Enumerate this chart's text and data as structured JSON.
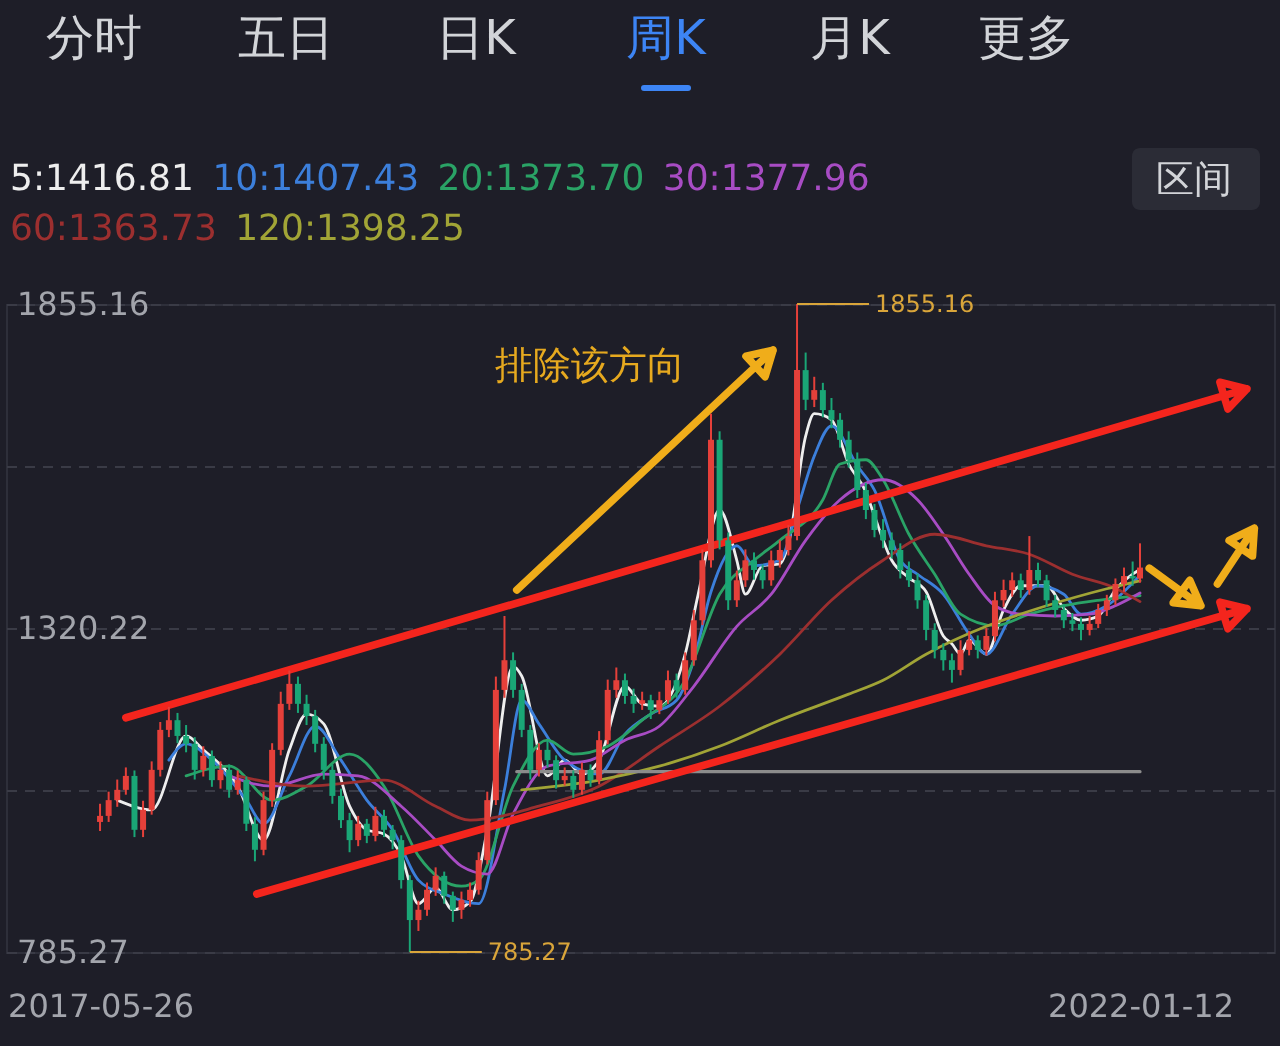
{
  "chart_data": {
    "type": "candlestick",
    "x": [
      "2017-05-26",
      "2017-06-09",
      "2017-06-23",
      "2017-07-07",
      "2017-07-21",
      "2017-08-04",
      "2017-08-18",
      "2017-09-01",
      "2017-09-15",
      "2017-09-29",
      "2017-10-13",
      "2017-10-27",
      "2017-11-10",
      "2017-11-24",
      "2017-12-08",
      "2017-12-22",
      "2018-01-05",
      "2018-01-19",
      "2018-02-02",
      "2018-02-16",
      "2018-03-02",
      "2018-03-16",
      "2018-03-30",
      "2018-04-13",
      "2018-04-27",
      "2018-05-11",
      "2018-05-25",
      "2018-06-08",
      "2018-06-22",
      "2018-07-06",
      "2018-07-20",
      "2018-08-03",
      "2018-08-17",
      "2018-08-31",
      "2018-09-14",
      "2018-09-28",
      "2018-10-12",
      "2018-10-26",
      "2018-11-09",
      "2018-11-23",
      "2018-12-07",
      "2018-12-21",
      "2019-01-04",
      "2019-01-18",
      "2019-02-01",
      "2019-02-15",
      "2019-03-01",
      "2019-03-15",
      "2019-03-29",
      "2019-04-12",
      "2019-04-26",
      "2019-05-10",
      "2019-05-24",
      "2019-06-07",
      "2019-06-21",
      "2019-07-05",
      "2019-07-19",
      "2019-08-02",
      "2019-08-16",
      "2019-08-30",
      "2019-09-13",
      "2019-09-27",
      "2019-10-11",
      "2019-10-25",
      "2019-11-08",
      "2019-11-22",
      "2019-12-06",
      "2019-12-20",
      "2020-01-03",
      "2020-01-17",
      "2020-01-31",
      "2020-02-14",
      "2020-02-28",
      "2020-03-13",
      "2020-03-27",
      "2020-04-10",
      "2020-04-24",
      "2020-05-08",
      "2020-05-22",
      "2020-06-05",
      "2020-06-19",
      "2020-07-03",
      "2020-07-17",
      "2020-07-31",
      "2020-08-14",
      "2020-08-28",
      "2020-09-11",
      "2020-09-25",
      "2020-10-09",
      "2020-10-23",
      "2020-11-06",
      "2020-11-20",
      "2020-12-04",
      "2020-12-18",
      "2021-01-01",
      "2021-01-15",
      "2021-01-29",
      "2021-02-12",
      "2021-02-26",
      "2021-03-12",
      "2021-03-26",
      "2021-04-09",
      "2021-04-23",
      "2021-05-07",
      "2021-05-21",
      "2021-06-04",
      "2021-06-18",
      "2021-07-02",
      "2021-07-16",
      "2021-07-30",
      "2021-08-13",
      "2021-08-27",
      "2021-09-10",
      "2021-09-24",
      "2021-10-08",
      "2021-10-22",
      "2021-11-05",
      "2021-11-19",
      "2021-12-03",
      "2021-12-17",
      "2021-12-31",
      "2022-01-12"
    ],
    "ohlc": [
      [
        1000,
        1030,
        985,
        1010
      ],
      [
        1010,
        1050,
        1000,
        1036
      ],
      [
        1036,
        1070,
        1025,
        1053
      ],
      [
        1053,
        1090,
        1045,
        1076
      ],
      [
        1076,
        1085,
        975,
        987
      ],
      [
        987,
        1035,
        975,
        1020
      ],
      [
        1020,
        1100,
        1012,
        1086
      ],
      [
        1086,
        1165,
        1075,
        1152
      ],
      [
        1152,
        1190,
        1140,
        1168
      ],
      [
        1168,
        1180,
        1130,
        1142
      ],
      [
        1142,
        1160,
        1115,
        1129
      ],
      [
        1129,
        1140,
        1070,
        1086
      ],
      [
        1086,
        1125,
        1075,
        1109
      ],
      [
        1109,
        1118,
        1058,
        1069
      ],
      [
        1069,
        1100,
        1055,
        1086
      ],
      [
        1086,
        1095,
        1040,
        1053
      ],
      [
        1053,
        1085,
        1045,
        1069
      ],
      [
        1069,
        1075,
        985,
        997
      ],
      [
        997,
        1008,
        935,
        954
      ],
      [
        954,
        1050,
        945,
        1036
      ],
      [
        1036,
        1130,
        1025,
        1119
      ],
      [
        1119,
        1215,
        1110,
        1195
      ],
      [
        1195,
        1250,
        1185,
        1228
      ],
      [
        1228,
        1240,
        1180,
        1195
      ],
      [
        1195,
        1210,
        1160,
        1175
      ],
      [
        1175,
        1185,
        1115,
        1129
      ],
      [
        1129,
        1140,
        1070,
        1086
      ],
      [
        1086,
        1095,
        1030,
        1043
      ],
      [
        1043,
        1055,
        990,
        1003
      ],
      [
        1003,
        1015,
        950,
        970
      ],
      [
        970,
        1010,
        960,
        997
      ],
      [
        997,
        1005,
        965,
        977
      ],
      [
        977,
        1025,
        968,
        1010
      ],
      [
        1010,
        1020,
        975,
        987
      ],
      [
        987,
        995,
        955,
        970
      ],
      [
        970,
        978,
        890,
        904
      ],
      [
        904,
        912,
        785.27,
        838
      ],
      [
        838,
        870,
        820,
        855
      ],
      [
        855,
        900,
        845,
        888
      ],
      [
        888,
        925,
        878,
        911
      ],
      [
        911,
        918,
        865,
        878
      ],
      [
        878,
        885,
        835,
        855
      ],
      [
        855,
        885,
        840,
        871
      ],
      [
        871,
        900,
        860,
        888
      ],
      [
        888,
        950,
        880,
        937
      ],
      [
        937,
        1050,
        930,
        1036
      ],
      [
        1036,
        1240,
        1028,
        1218
      ],
      [
        1218,
        1340,
        1205,
        1267
      ],
      [
        1267,
        1280,
        1205,
        1218
      ],
      [
        1218,
        1228,
        1140,
        1152
      ],
      [
        1152,
        1160,
        1070,
        1086
      ],
      [
        1086,
        1130,
        1075,
        1119
      ],
      [
        1119,
        1135,
        1090,
        1102
      ],
      [
        1102,
        1110,
        1055,
        1069
      ],
      [
        1069,
        1090,
        1060,
        1076
      ],
      [
        1076,
        1085,
        1040,
        1053
      ],
      [
        1053,
        1098,
        1045,
        1086
      ],
      [
        1086,
        1095,
        1058,
        1069
      ],
      [
        1069,
        1150,
        1062,
        1135
      ],
      [
        1135,
        1235,
        1128,
        1218
      ],
      [
        1218,
        1255,
        1205,
        1234
      ],
      [
        1234,
        1245,
        1195,
        1208
      ],
      [
        1208,
        1220,
        1180,
        1195
      ],
      [
        1195,
        1215,
        1185,
        1201
      ],
      [
        1201,
        1210,
        1170,
        1185
      ],
      [
        1185,
        1215,
        1178,
        1201
      ],
      [
        1201,
        1250,
        1195,
        1234
      ],
      [
        1234,
        1245,
        1205,
        1218
      ],
      [
        1218,
        1280,
        1210,
        1267
      ],
      [
        1267,
        1350,
        1258,
        1333
      ],
      [
        1333,
        1450,
        1325,
        1432
      ],
      [
        1432,
        1674,
        1420,
        1631
      ],
      [
        1631,
        1645,
        1450,
        1465
      ],
      [
        1465,
        1478,
        1350,
        1366
      ],
      [
        1366,
        1415,
        1355,
        1399
      ],
      [
        1399,
        1450,
        1388,
        1432
      ],
      [
        1432,
        1445,
        1400,
        1416
      ],
      [
        1416,
        1425,
        1385,
        1399
      ],
      [
        1399,
        1448,
        1390,
        1432
      ],
      [
        1432,
        1465,
        1420,
        1449
      ],
      [
        1449,
        1490,
        1440,
        1472
      ],
      [
        1472,
        1855.16,
        1465,
        1746
      ],
      [
        1746,
        1775,
        1680,
        1697
      ],
      [
        1697,
        1735,
        1685,
        1713
      ],
      [
        1713,
        1725,
        1668,
        1680
      ],
      [
        1680,
        1700,
        1650,
        1664
      ],
      [
        1664,
        1675,
        1618,
        1631
      ],
      [
        1631,
        1645,
        1585,
        1598
      ],
      [
        1598,
        1610,
        1535,
        1548
      ],
      [
        1548,
        1560,
        1500,
        1515
      ],
      [
        1515,
        1525,
        1470,
        1482
      ],
      [
        1482,
        1500,
        1452,
        1465
      ],
      [
        1465,
        1478,
        1435,
        1449
      ],
      [
        1449,
        1460,
        1402,
        1416
      ],
      [
        1416,
        1430,
        1388,
        1399
      ],
      [
        1399,
        1410,
        1352,
        1366
      ],
      [
        1366,
        1375,
        1300,
        1317
      ],
      [
        1317,
        1328,
        1270,
        1284
      ],
      [
        1284,
        1295,
        1250,
        1267
      ],
      [
        1267,
        1278,
        1230,
        1251
      ],
      [
        1251,
        1300,
        1242,
        1284
      ],
      [
        1284,
        1315,
        1275,
        1300
      ],
      [
        1300,
        1308,
        1270,
        1284
      ],
      [
        1284,
        1320,
        1275,
        1307
      ],
      [
        1307,
        1380,
        1298,
        1366
      ],
      [
        1366,
        1400,
        1355,
        1383
      ],
      [
        1383,
        1412,
        1372,
        1399
      ],
      [
        1399,
        1410,
        1370,
        1383
      ],
      [
        1383,
        1472,
        1375,
        1416
      ],
      [
        1416,
        1428,
        1388,
        1399
      ],
      [
        1399,
        1408,
        1355,
        1366
      ],
      [
        1366,
        1375,
        1338,
        1350
      ],
      [
        1350,
        1360,
        1320,
        1333
      ],
      [
        1333,
        1345,
        1315,
        1327
      ],
      [
        1327,
        1338,
        1300,
        1317
      ],
      [
        1317,
        1340,
        1308,
        1327
      ],
      [
        1327,
        1360,
        1320,
        1350
      ],
      [
        1350,
        1375,
        1340,
        1366
      ],
      [
        1366,
        1402,
        1358,
        1393
      ],
      [
        1393,
        1420,
        1380,
        1406
      ],
      [
        1406,
        1430,
        1390,
        1402
      ],
      [
        1402,
        1460,
        1395,
        1420
      ]
    ],
    "colors": [
      "#e5403a",
      "#e5403a",
      "#e5403a",
      "#e5403a",
      "#1aa676",
      "#e5403a",
      "#e5403a",
      "#e5403a",
      "#e5403a",
      "#1aa676",
      "#1aa676",
      "#1aa676",
      "#e5403a",
      "#1aa676",
      "#e5403a",
      "#1aa676",
      "#e5403a",
      "#1aa676",
      "#1aa676",
      "#e5403a",
      "#e5403a",
      "#e5403a",
      "#e5403a",
      "#1aa676",
      "#1aa676",
      "#1aa676",
      "#1aa676",
      "#1aa676",
      "#1aa676",
      "#1aa676",
      "#e5403a",
      "#1aa676",
      "#e5403a",
      "#1aa676",
      "#1aa676",
      "#1aa676",
      "#1aa676",
      "#e5403a",
      "#e5403a",
      "#e5403a",
      "#1aa676",
      "#1aa676",
      "#e5403a",
      "#e5403a",
      "#e5403a",
      "#e5403a",
      "#e5403a",
      "#e5403a",
      "#1aa676",
      "#1aa676",
      "#1aa676",
      "#e5403a",
      "#1aa676",
      "#1aa676",
      "#e5403a",
      "#1aa676",
      "#e5403a",
      "#1aa676",
      "#e5403a",
      "#e5403a",
      "#e5403a",
      "#1aa676",
      "#1aa676",
      "#e5403a",
      "#1aa676",
      "#e5403a",
      "#e5403a",
      "#1aa676",
      "#e5403a",
      "#e5403a",
      "#e5403a",
      "#e5403a",
      "#1aa676",
      "#1aa676",
      "#e5403a",
      "#e5403a",
      "#1aa676",
      "#1aa676",
      "#e5403a",
      "#e5403a",
      "#e5403a",
      "#e5403a",
      "#1aa676",
      "#e5403a",
      "#1aa676",
      "#1aa676",
      "#1aa676",
      "#1aa676",
      "#1aa676",
      "#1aa676",
      "#1aa676",
      "#1aa676",
      "#1aa676",
      "#1aa676",
      "#1aa676",
      "#1aa676",
      "#1aa676",
      "#1aa676",
      "#1aa676",
      "#1aa676",
      "#e5403a",
      "#e5403a",
      "#1aa676",
      "#e5403a",
      "#e5403a",
      "#e5403a",
      "#e5403a",
      "#1aa676",
      "#e5403a",
      "#1aa676",
      "#1aa676",
      "#1aa676",
      "#1aa676",
      "#1aa676",
      "#1aa676",
      "#e5403a",
      "#e5403a",
      "#e5403a",
      "#e5403a",
      "#e5403a",
      "#1aa676",
      "#e5403a"
    ],
    "series": [
      {
        "name": "5:1416.81",
        "type": "line",
        "color": "#eeeeee",
        "x": [
          "2017-06-23",
          "2017-08-18",
          "2017-10-13",
          "2017-11-10",
          "2018-01-05",
          "2018-02-16",
          "2018-03-30",
          "2018-04-27",
          "2018-05-25",
          "2018-07-06",
          "2018-08-03",
          "2018-08-31",
          "2018-09-28",
          "2018-10-26",
          "2018-11-23",
          "2018-12-21",
          "2019-01-18",
          "2019-02-15",
          "2019-03-29",
          "2019-04-12",
          "2019-05-24",
          "2019-06-21",
          "2019-07-19",
          "2019-08-16",
          "2019-09-27",
          "2019-10-25",
          "2019-11-22",
          "2020-01-03",
          "2020-01-24",
          "2020-02-28",
          "2020-03-27",
          "2020-04-10",
          "2020-05-08",
          "2020-06-05",
          "2020-06-19",
          "2020-07-17",
          "2020-07-31",
          "2020-08-28",
          "2020-09-25",
          "2020-10-23",
          "2020-11-06",
          "2020-12-04",
          "2021-01-01",
          "2021-01-29",
          "2021-02-26",
          "2021-03-12",
          "2021-03-26",
          "2021-04-09",
          "2021-05-07",
          "2021-06-04",
          "2021-07-02",
          "2021-08-13",
          "2021-09-10",
          "2021-10-08",
          "2021-11-05",
          "2021-12-03",
          "2021-12-31",
          "2022-01-12"
        ],
        "values": [
          1036,
          1020,
          1142,
          1119,
          1059,
          970,
          1119,
          1178,
          1162,
          1026,
          987,
          980,
          944,
          865,
          891,
          855,
          868,
          987,
          1257,
          1241,
          1076,
          1102,
          1079,
          1102,
          1224,
          1195,
          1191,
          1277,
          1375,
          1515,
          1432,
          1376,
          1423,
          1426,
          1459,
          1637,
          1674,
          1664,
          1591,
          1545,
          1505,
          1432,
          1403,
          1380,
          1307,
          1294,
          1277,
          1300,
          1277,
          1350,
          1390,
          1390,
          1353,
          1333,
          1340,
          1383,
          1409,
          1416.81
        ]
      },
      {
        "name": "10:1407.43",
        "type": "line",
        "color": "#3c7fdb",
        "x": [
          "2017-09-15",
          "2017-10-13",
          "2017-11-24",
          "2018-01-19",
          "2018-02-16",
          "2018-03-30",
          "2018-05-11",
          "2018-06-22",
          "2018-08-03",
          "2018-09-14",
          "2018-10-26",
          "2018-12-07",
          "2019-02-01",
          "2019-03-15",
          "2019-04-12",
          "2019-05-10",
          "2019-06-21",
          "2019-08-16",
          "2019-09-27",
          "2019-11-08",
          "2019-12-20",
          "2020-01-17",
          "2020-02-14",
          "2020-03-27",
          "2020-04-24",
          "2020-06-05",
          "2020-07-03",
          "2020-07-31",
          "2020-08-28",
          "2020-10-09",
          "2020-11-06",
          "2020-12-18",
          "2021-01-15",
          "2021-02-26",
          "2021-04-09",
          "2021-05-07",
          "2021-06-18",
          "2021-07-30",
          "2021-09-10",
          "2021-10-08",
          "2021-11-19",
          "2022-01-12"
        ],
        "values": [
          1102,
          1129,
          1102,
          1036,
          997,
          1076,
          1158,
          1102,
          1036,
          987,
          904,
          881,
          865,
          1053,
          1201,
          1162,
          1102,
          1079,
          1145,
          1178,
          1201,
          1267,
          1380,
          1456,
          1423,
          1432,
          1515,
          1604,
          1654,
          1588,
          1548,
          1432,
          1409,
          1376,
          1310,
          1277,
          1343,
          1390,
          1376,
          1343,
          1357,
          1407.43
        ]
      },
      {
        "name": "20:1373.70",
        "type": "line",
        "color": "#2aa366",
        "x": [
          "2017-10-13",
          "2017-12-22",
          "2018-03-02",
          "2018-04-27",
          "2018-07-06",
          "2018-08-31",
          "2018-10-26",
          "2019-01-04",
          "2019-02-01",
          "2019-03-29",
          "2019-05-24",
          "2019-07-05",
          "2019-08-30",
          "2019-10-25",
          "2020-01-03",
          "2020-02-28",
          "2020-04-24",
          "2020-06-05",
          "2020-08-14",
          "2020-09-11",
          "2020-10-23",
          "2020-11-20",
          "2021-01-01",
          "2021-02-12",
          "2021-03-26",
          "2021-05-21",
          "2021-07-16",
          "2021-09-10",
          "2021-11-05",
          "2022-01-12"
        ],
        "values": [
          1076,
          1092,
          1036,
          1059,
          1112,
          1059,
          944,
          894,
          904,
          1059,
          1135,
          1112,
          1125,
          1168,
          1234,
          1376,
          1432,
          1465,
          1532,
          1591,
          1598,
          1565,
          1475,
          1409,
          1343,
          1324,
          1343,
          1357,
          1366,
          1373.7
        ]
      },
      {
        "name": "30:1377.96",
        "type": "line",
        "color": "#a84cc4",
        "x": [
          "2017-12-22",
          "2018-03-02",
          "2018-05-25",
          "2018-07-20",
          "2018-09-28",
          "2018-11-23",
          "2019-01-04",
          "2019-02-15",
          "2019-03-29",
          "2019-05-24",
          "2019-08-02",
          "2019-09-27",
          "2019-11-22",
          "2020-01-17",
          "2020-03-27",
          "2020-05-22",
          "2020-07-17",
          "2020-09-11",
          "2020-11-20",
          "2021-01-15",
          "2021-02-26",
          "2021-04-09",
          "2021-05-21",
          "2021-07-02",
          "2021-08-27",
          "2021-10-22",
          "2021-12-03",
          "2022-01-12"
        ],
        "values": [
          1076,
          1059,
          1079,
          1076,
          1026,
          970,
          927,
          914,
          1013,
          1092,
          1102,
          1135,
          1158,
          1224,
          1323,
          1376,
          1465,
          1532,
          1565,
          1532,
          1475,
          1409,
          1357,
          1343,
          1340,
          1343,
          1357,
          1377.96
        ]
      },
      {
        "name": "60:1363.73",
        "type": "line",
        "color": "#9c2f2f",
        "x": [
          "2018-01-05",
          "2018-04-27",
          "2018-08-31",
          "2018-11-23",
          "2019-01-18",
          "2019-05-10",
          "2019-08-16",
          "2019-11-22",
          "2020-02-28",
          "2020-06-05",
          "2020-08-28",
          "2020-11-20",
          "2021-02-12",
          "2021-05-07",
          "2021-07-16",
          "2021-09-24",
          "2021-12-03",
          "2022-01-12"
        ],
        "values": [
          1076,
          1059,
          1069,
          1026,
          1003,
          1026,
          1059,
          1125,
          1191,
          1277,
          1366,
          1432,
          1475,
          1456,
          1442,
          1409,
          1386,
          1363.73
        ]
      },
      {
        "name": "120:1398.25",
        "type": "line",
        "color": "#a1a436",
        "x": [
          "2019-04-12",
          "2019-08-16",
          "2019-11-22",
          "2020-02-28",
          "2020-06-05",
          "2020-09-25",
          "2020-11-20",
          "2021-01-29",
          "2021-05-07",
          "2021-08-13",
          "2021-11-19",
          "2022-01-12"
        ],
        "values": [
          1053,
          1069,
          1092,
          1125,
          1168,
          1211,
          1234,
          1277,
          1323,
          1357,
          1385,
          1398.25
        ]
      },
      {
        "type": "step",
        "color": "#8c8c8c",
        "x": [
          "2019-04-04",
          "2022-01-12"
        ],
        "values": [
          1083,
          1083
        ]
      },
      {
        "type": "line",
        "color": "#f4251d",
        "x": [
          "2017-07-07",
          "2022-07-05",
          "2022-06-04",
          "2022-05-22",
          "2022-07-05"
        ],
        "values": [
          1172,
          1715,
          1682,
          1726,
          1715
        ]
      },
      {
        "type": "line",
        "color": "#f4251d",
        "x": [
          "2018-02-05",
          "2022-07-05",
          "2022-06-04",
          "2022-05-22",
          "2022-07-05"
        ],
        "values": [
          881,
          1352,
          1319,
          1363,
          1352
        ]
      },
      {
        "type": "line",
        "color": "#f0ad1a",
        "x": [
          "2019-04-04",
          "2020-05-25",
          "2020-05-12",
          "2020-04-11",
          "2020-05-25"
        ],
        "values": [
          1383,
          1779,
          1735,
          1769,
          1779
        ]
      },
      {
        "type": "line",
        "color": "#f0ad1a",
        "x": [
          "2022-01-27",
          "2022-04-21",
          "2022-03-07",
          "2022-04-03",
          "2022-04-21"
        ],
        "values": [
          1419,
          1357,
          1362,
          1399,
          1357
        ]
      },
      {
        "type": "line",
        "color": "#f0ad1a",
        "x": [
          "2022-05-18",
          "2022-07-17",
          "2022-07-14",
          "2022-06-06",
          "2022-07-17"
        ],
        "values": [
          1393,
          1485,
          1439,
          1465,
          1485
        ]
      }
    ],
    "xlim": [
      "2016-12-24",
      "2022-08-18"
    ],
    "xticks": [
      "2017-05-26",
      "2022-01-12"
    ],
    "ylim": [
      785.27,
      1855.16
    ],
    "yticks": [
      785.27,
      {
        "value": 1052.74,
        "label": null
      },
      1320.22,
      {
        "value": 1587.69,
        "label": null
      },
      1855.16
    ],
    "grid": "y",
    "legend": "top left",
    "annotations": [
      "分时",
      "五日",
      "日K",
      "周K",
      "月K",
      "更多",
      "区间",
      "排除该方向",
      {
        "text": "1855.16",
        "x": "2020-07-03",
        "y": 1855.16
      },
      {
        "text": "785.27",
        "x": "2018-10-12",
        "y": 785.27
      }
    ]
  }
}
